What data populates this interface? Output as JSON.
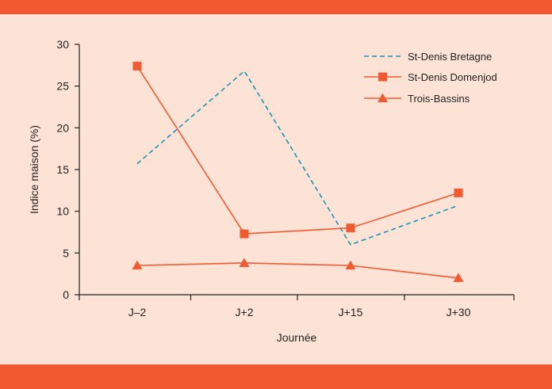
{
  "chart_data": {
    "type": "line",
    "xlabel": "Journée",
    "ylabel": "Indice maison (%)",
    "categories": [
      "J–2",
      "J+2",
      "J+15",
      "J+30"
    ],
    "ylim": [
      0,
      30
    ],
    "yticks": [
      0,
      5,
      10,
      15,
      20,
      25,
      30
    ],
    "legend_position": "top-right",
    "series": [
      {
        "name": "St-Denis Bretagne",
        "values": [
          15.7,
          26.8,
          6.0,
          10.7
        ],
        "color": "#1a93b4",
        "style": "dashed",
        "marker": "none"
      },
      {
        "name": "St-Denis Domenjod",
        "values": [
          27.4,
          7.3,
          8.0,
          12.2
        ],
        "color": "#f15a31",
        "style": "solid",
        "marker": "square"
      },
      {
        "name": "Trois-Bassins",
        "values": [
          3.5,
          3.8,
          3.5,
          2.0
        ],
        "color": "#f15a31",
        "style": "solid",
        "marker": "triangle"
      }
    ]
  },
  "colors": {
    "background": "#fde3d6",
    "band": "#f15a31",
    "axis": "#222222"
  }
}
